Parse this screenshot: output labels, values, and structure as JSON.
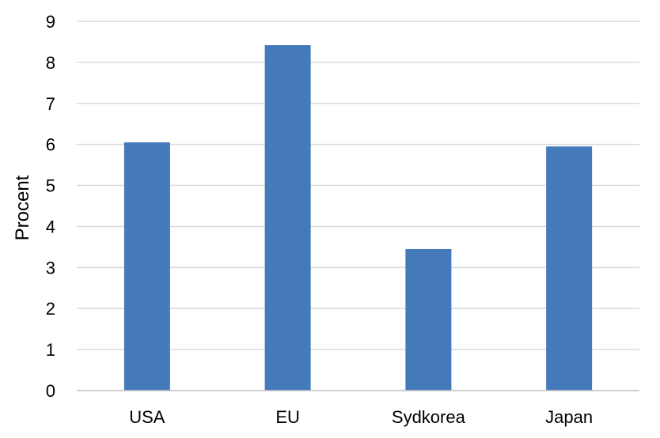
{
  "chart_data": {
    "type": "bar",
    "categories": [
      "USA",
      "EU",
      "Sydkorea",
      "Japan"
    ],
    "values": [
      6.05,
      8.42,
      3.45,
      5.95
    ],
    "ylabel": "Procent",
    "xlabel": "",
    "ylim": [
      0,
      9
    ],
    "yticks": [
      0,
      1,
      2,
      3,
      4,
      5,
      6,
      7,
      8,
      9
    ],
    "grid": true,
    "legend": "none",
    "colors": {
      "bar": "#4479BA",
      "grid": "#D9D9D9",
      "axis": "#BFBFBF",
      "text": "#000000"
    }
  }
}
